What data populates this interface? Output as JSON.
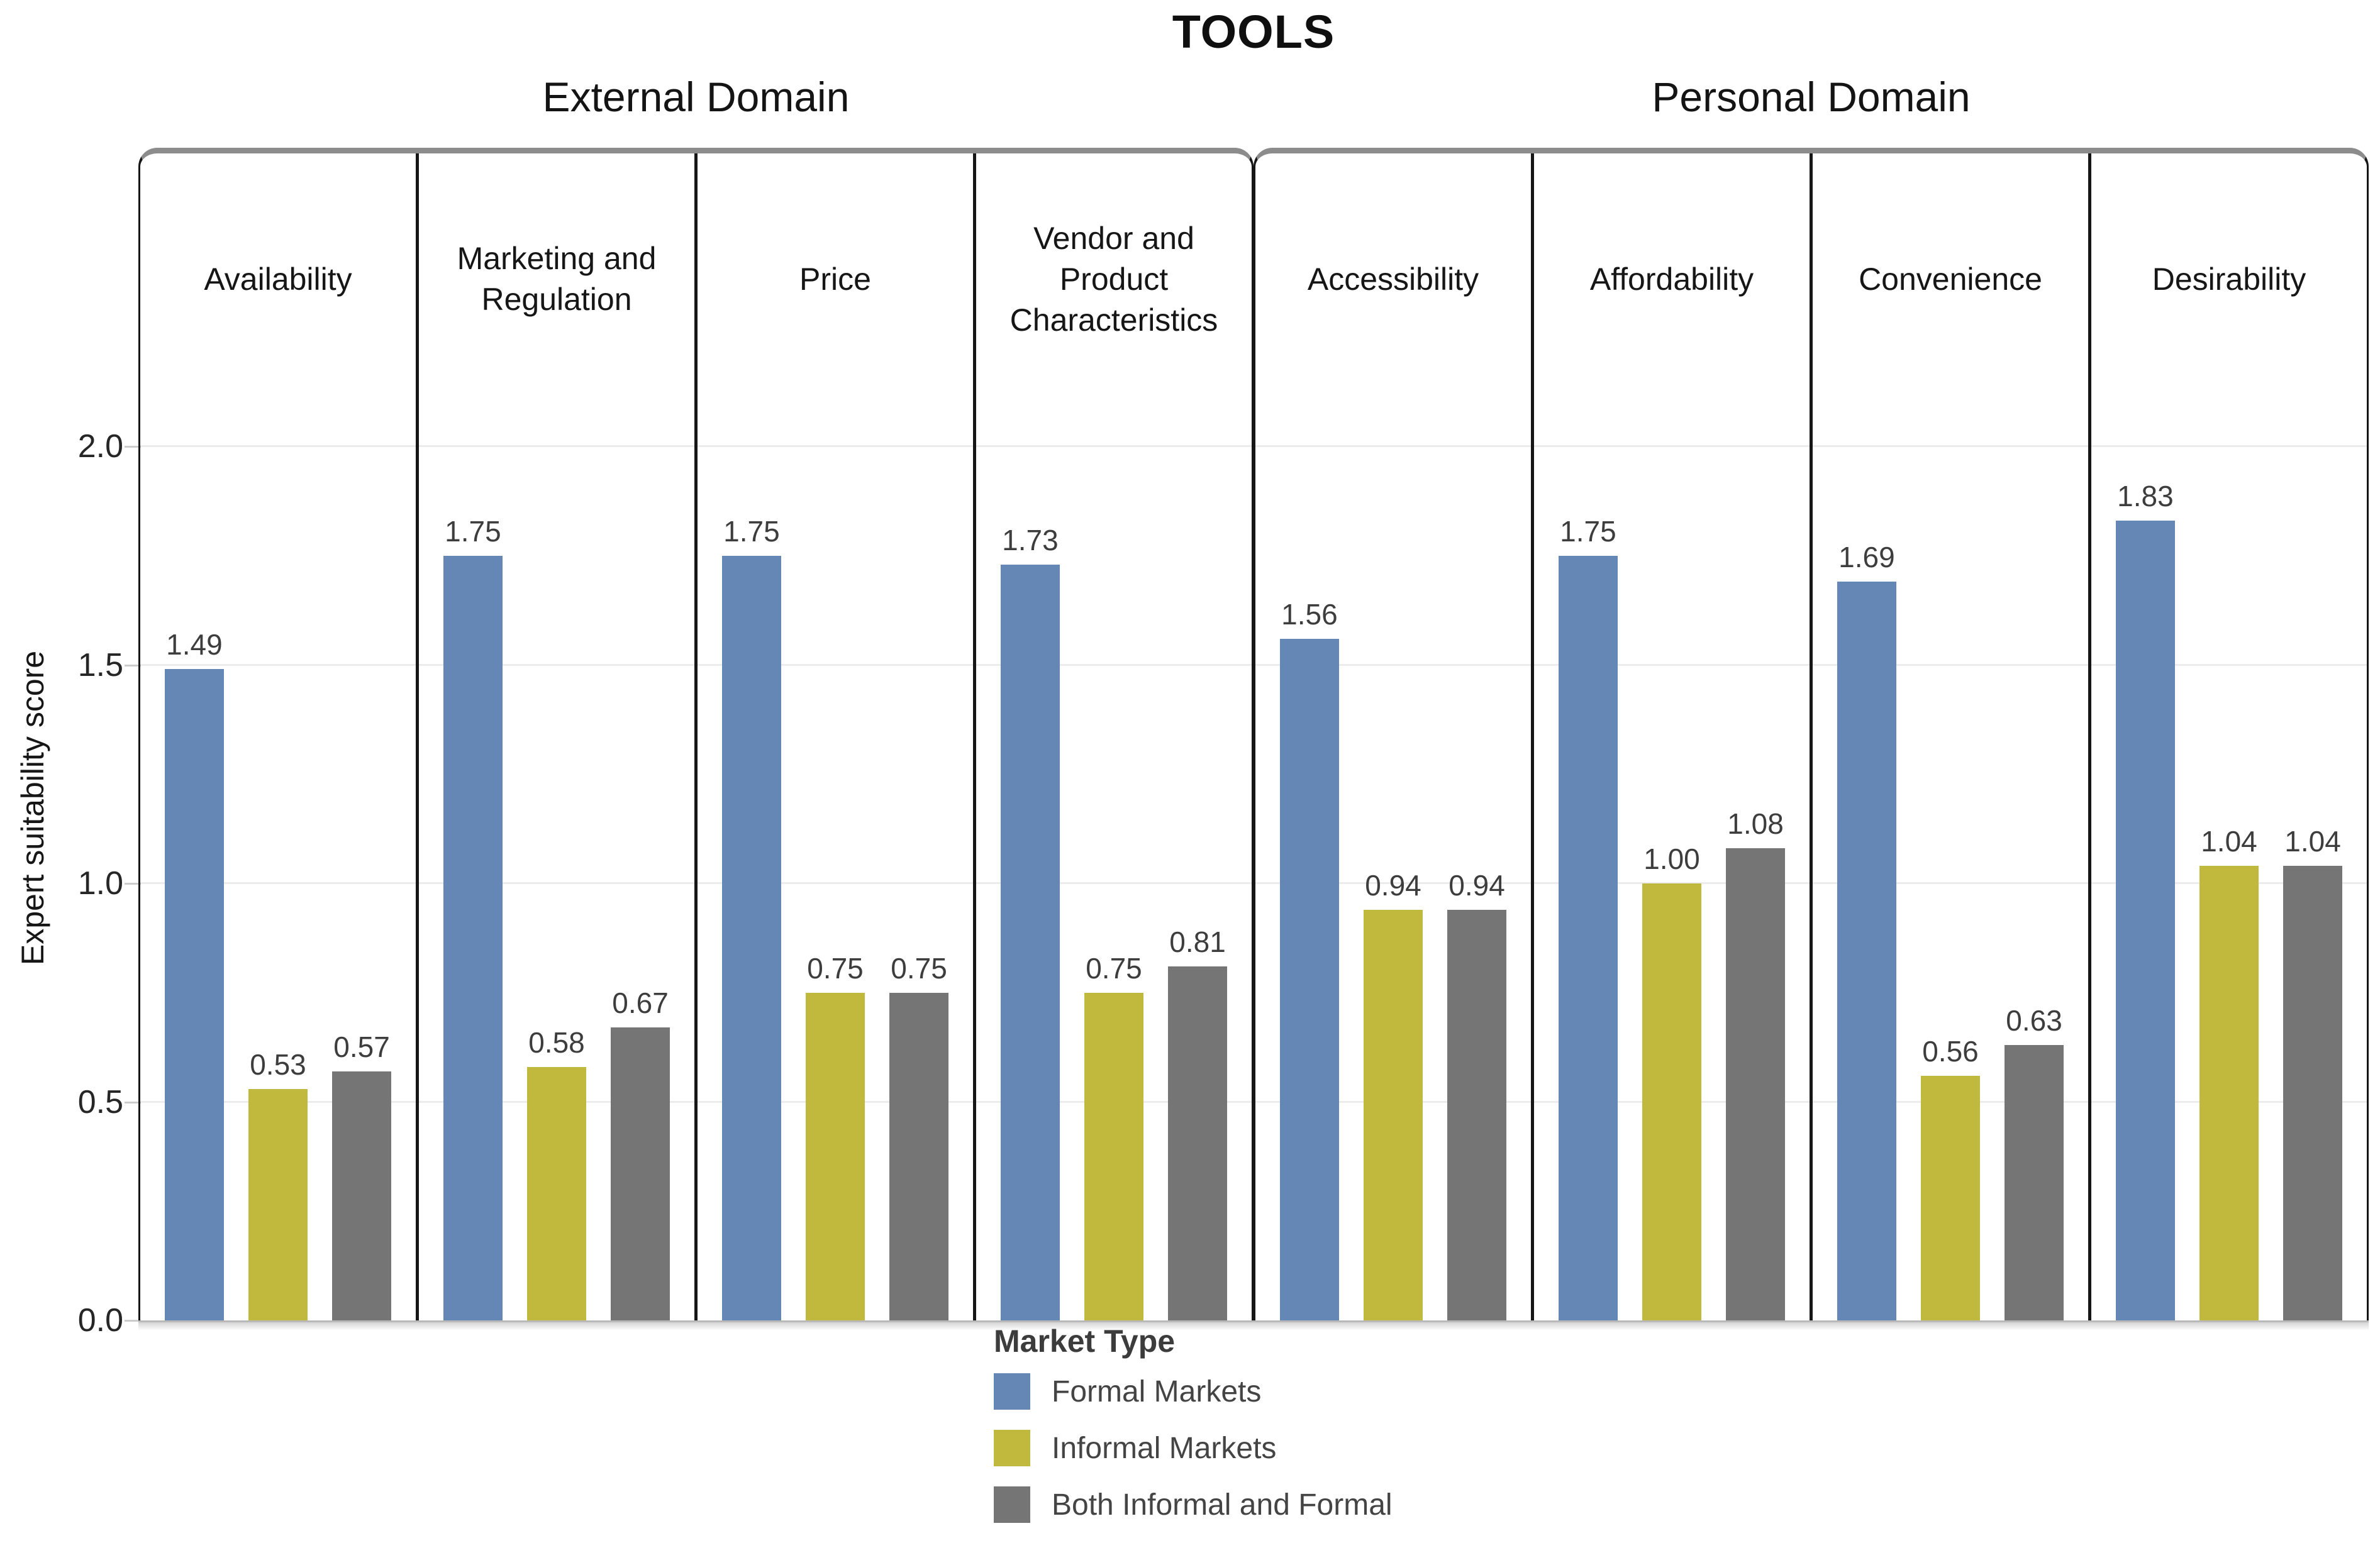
{
  "title": "TOOLS",
  "y_axis": {
    "label": "Expert suitability score",
    "ticks": [
      {
        "label": "0.0",
        "value": 0.0
      },
      {
        "label": "0.5",
        "value": 0.5
      },
      {
        "label": "1.0",
        "value": 1.0
      },
      {
        "label": "1.5",
        "value": 1.5
      },
      {
        "label": "2.0",
        "value": 2.0
      }
    ]
  },
  "legend": {
    "title": "Market Type",
    "items": [
      {
        "label": "Formal Markets",
        "color": "#6487b5"
      },
      {
        "label": "Informal Markets",
        "color": "#c1b93d"
      },
      {
        "label": "Both Informal and Formal",
        "color": "#757575"
      }
    ]
  },
  "chart_data": {
    "type": "bar",
    "title": "TOOLS",
    "xlabel": "",
    "ylabel": "Expert suitability score",
    "ylim": [
      0,
      2.0
    ],
    "grid": true,
    "legend_position": "bottom",
    "value_label_format": "0.00",
    "series_names": [
      "Formal Markets",
      "Informal Markets",
      "Both Informal and Formal"
    ],
    "domains": [
      {
        "label": "External Domain",
        "categories": [
          {
            "label": "Availability",
            "values": [
              1.49,
              0.53,
              0.57
            ]
          },
          {
            "label": "Marketing and Regulation",
            "values": [
              1.75,
              0.58,
              0.67
            ]
          },
          {
            "label": "Price",
            "values": [
              1.75,
              0.75,
              0.75
            ]
          },
          {
            "label": "Vendor and Product Characteristics",
            "values": [
              1.73,
              0.75,
              0.81
            ]
          }
        ]
      },
      {
        "label": "Personal Domain",
        "categories": [
          {
            "label": "Accessibility",
            "values": [
              1.56,
              0.94,
              0.94
            ]
          },
          {
            "label": "Affordability",
            "values": [
              1.75,
              1.0,
              1.08
            ]
          },
          {
            "label": "Convenience",
            "values": [
              1.69,
              0.56,
              0.63
            ]
          },
          {
            "label": "Desirability",
            "values": [
              1.83,
              1.04,
              1.04
            ]
          }
        ]
      }
    ]
  }
}
